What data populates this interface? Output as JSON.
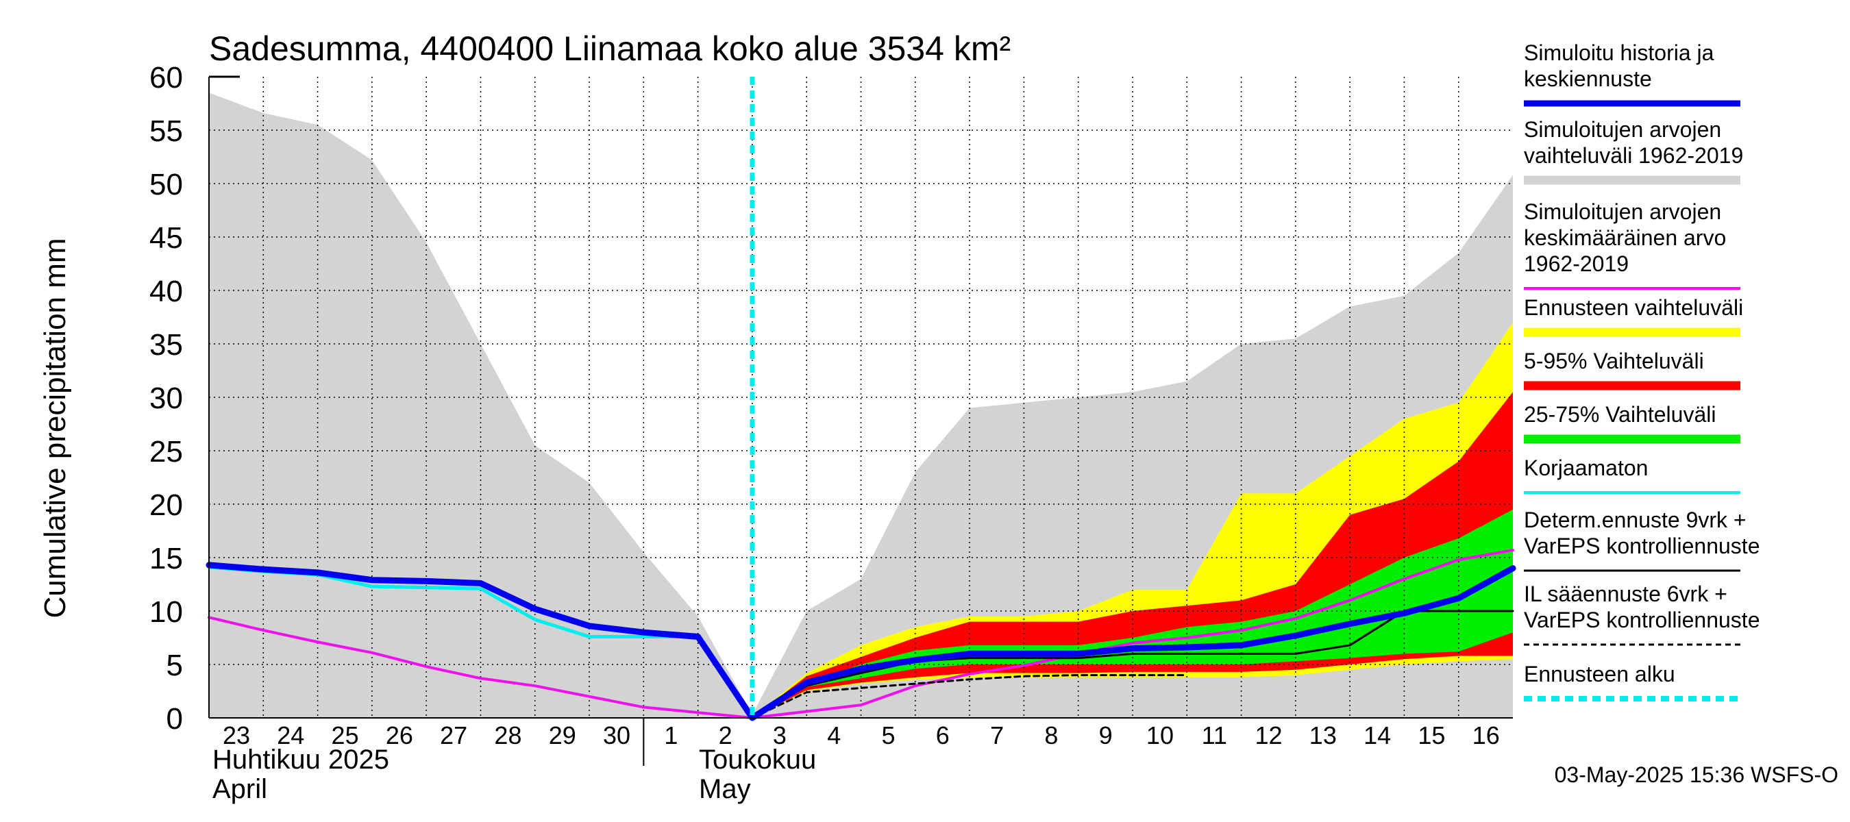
{
  "chart_data": {
    "type": "area",
    "title": "Sadesumma, 4400400 Liinamaa koko alue 3534 km²",
    "ylabel": "Cumulative precipitation   mm",
    "ylim": [
      0,
      60
    ],
    "y_ticks": [
      "0",
      "5",
      "10",
      "15",
      "20",
      "25",
      "30",
      "35",
      "40",
      "45",
      "50",
      "55",
      "60"
    ],
    "x_tick_labels": [
      "23",
      "24",
      "25",
      "26",
      "27",
      "28",
      "29",
      "30",
      "1",
      "2",
      "3",
      "4",
      "5",
      "6",
      "7",
      "8",
      "9",
      "10",
      "11",
      "12",
      "13",
      "14",
      "15",
      "16"
    ],
    "month_labels": {
      "april_fi": "Huhtikuu  2025",
      "april_en": "April",
      "may_fi": "Toukokuu",
      "may_en": "May"
    },
    "timestamp": "03-May-2025 15:36 WSFS-O",
    "x_days": [
      0,
      1,
      2,
      3,
      4,
      5,
      6,
      7,
      8,
      9,
      10,
      11,
      12,
      13,
      14,
      15,
      16,
      17,
      18,
      19,
      20,
      21,
      22,
      23,
      24
    ],
    "forecast_start_day": 10,
    "series": {
      "historical_range_upper": [
        58.5,
        56.6,
        55.5,
        52.2,
        44.5,
        35.0,
        25.5,
        22.0,
        15.5,
        9.5,
        0.3,
        10.0,
        13.0,
        23.0,
        29.0,
        29.5,
        30.0,
        30.5,
        31.5,
        35.0,
        35.5,
        38.5,
        39.5,
        43.5,
        50.8
      ],
      "historical_range_lower": [
        0,
        0,
        0,
        0,
        0,
        0,
        0,
        0,
        0,
        0,
        0,
        0,
        0,
        0,
        0,
        0,
        0,
        0,
        0,
        0,
        0,
        0,
        0,
        0,
        0
      ],
      "forecast_range_upper": [
        null,
        null,
        null,
        null,
        null,
        null,
        null,
        null,
        null,
        null,
        0,
        4.2,
        6.8,
        8.5,
        9.5,
        9.5,
        10.0,
        12.0,
        12.0,
        21.0,
        21.0,
        24.5,
        28.0,
        29.5,
        37.0
      ],
      "forecast_range_lower": [
        null,
        null,
        null,
        null,
        null,
        null,
        null,
        null,
        null,
        null,
        0,
        2.5,
        3.2,
        3.6,
        3.8,
        3.8,
        3.8,
        3.8,
        3.8,
        3.8,
        4.0,
        4.5,
        5.0,
        5.3,
        5.5
      ],
      "p5_95_upper": [
        null,
        null,
        null,
        null,
        null,
        null,
        null,
        null,
        null,
        null,
        0,
        3.9,
        5.7,
        7.5,
        9.0,
        9.0,
        9.0,
        10.0,
        10.5,
        11.0,
        12.5,
        19.0,
        20.5,
        24.0,
        30.5
      ],
      "p5_95_lower": [
        null,
        null,
        null,
        null,
        null,
        null,
        null,
        null,
        null,
        null,
        0,
        2.6,
        3.3,
        3.8,
        4.2,
        4.2,
        4.2,
        4.3,
        4.3,
        4.3,
        4.5,
        5.0,
        5.5,
        5.8,
        5.8
      ],
      "p25_75_upper": [
        null,
        null,
        null,
        null,
        null,
        null,
        null,
        null,
        null,
        null,
        0,
        3.3,
        5.0,
        6.3,
        6.8,
        6.8,
        6.8,
        7.5,
        8.5,
        9.0,
        10.0,
        12.5,
        15.0,
        16.8,
        19.5
      ],
      "p25_75_lower": [
        null,
        null,
        null,
        null,
        null,
        null,
        null,
        null,
        null,
        null,
        0,
        2.9,
        3.7,
        4.6,
        5.0,
        5.0,
        5.0,
        5.0,
        5.0,
        5.0,
        5.3,
        5.6,
        6.0,
        6.2,
        8.0
      ],
      "simulated_history_median": [
        14.3,
        13.9,
        13.6,
        12.9,
        12.8,
        12.6,
        10.2,
        8.6,
        8.0,
        7.6,
        0.0,
        3.3,
        4.6,
        5.4,
        6.0,
        6.0,
        6.0,
        6.5,
        6.6,
        6.8,
        7.7,
        8.8,
        9.8,
        11.2,
        14.0
      ],
      "uncorrected": [
        14.1,
        13.7,
        13.4,
        12.3,
        12.2,
        12.1,
        9.2,
        7.6,
        7.6,
        7.6,
        null,
        null,
        null,
        null,
        null,
        null,
        null,
        null,
        null,
        null,
        null,
        null,
        null,
        null,
        null
      ],
      "mean_1962_2019": [
        9.4,
        8.2,
        7.1,
        6.1,
        4.8,
        3.7,
        3.0,
        2.0,
        1.0,
        0.5,
        0.0,
        0.6,
        1.2,
        3.0,
        4.1,
        4.9,
        6.0,
        7.0,
        7.5,
        8.2,
        9.3,
        11.0,
        13.0,
        14.8,
        15.7
      ],
      "determ_9day": [
        null,
        null,
        null,
        null,
        null,
        null,
        null,
        null,
        null,
        null,
        0,
        3.0,
        4.2,
        5.3,
        5.6,
        5.6,
        5.6,
        6.0,
        6.0,
        6.0,
        6.0,
        6.8,
        10.0,
        10.0,
        10.0
      ],
      "il_6day": [
        null,
        null,
        null,
        null,
        null,
        null,
        null,
        null,
        null,
        null,
        0,
        2.4,
        2.8,
        3.2,
        3.6,
        3.9,
        4.0,
        4.0,
        4.0,
        null,
        null,
        null,
        null,
        null,
        null
      ]
    },
    "legend": [
      {
        "label_lines": [
          "Simuloitu historia ja",
          "keskiennuste"
        ],
        "color": "#0000ee",
        "kind": "line-thick"
      },
      {
        "label_lines": [
          "Simuloitujen arvojen",
          "vaihteluväli 1962-2019"
        ],
        "color": "#d3d3d3",
        "kind": "band"
      },
      {
        "label_lines": [
          "Simuloitujen arvojen",
          "keskimääräinen arvo",
          "   1962-2019"
        ],
        "color": "#ee11ee",
        "kind": "line"
      },
      {
        "label_lines": [
          "Ennusteen vaihteluväli"
        ],
        "color": "#ffff00",
        "kind": "band"
      },
      {
        "label_lines": [
          "5-95% Vaihteluväli"
        ],
        "color": "#ff0000",
        "kind": "band"
      },
      {
        "label_lines": [
          "25-75% Vaihteluväli"
        ],
        "color": "#00ee00",
        "kind": "band"
      },
      {
        "label_lines": [
          "Korjaamaton"
        ],
        "color": "#00eeee",
        "kind": "line"
      },
      {
        "label_lines": [
          "Determ.ennuste 9vrk +",
          "VarEPS kontrolliennuste"
        ],
        "color": "#000000",
        "kind": "line-thin"
      },
      {
        "label_lines": [
          "IL sääennuste 6vrk  +",
          "  VarEPS kontrolliennuste"
        ],
        "color": "#000000",
        "kind": "dashed"
      },
      {
        "label_lines": [
          "Ennusteen alku"
        ],
        "color": "#00eeee",
        "kind": "dashed-thick"
      }
    ],
    "colors": {
      "historical_range": "#d3d3d3",
      "forecast_range": "#ffff00",
      "p5_95": "#ff0000",
      "p25_75": "#00ee00",
      "median": "#0000ee",
      "uncorrected": "#00eeee",
      "mean": "#ee11ee",
      "determ": "#000000",
      "forecast_start": "#00eeee",
      "grid": "#000000"
    }
  }
}
